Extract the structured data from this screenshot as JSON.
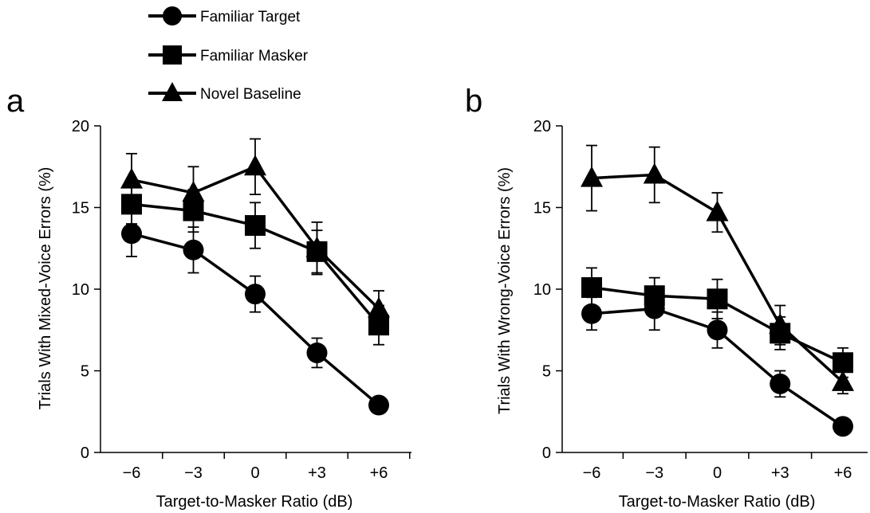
{
  "chart_data": [
    {
      "type": "line",
      "panel_label": "a",
      "xlabel": "Target-to-Masker Ratio (dB)",
      "ylabel": "Trials With Mixed-Voice Errors (%)",
      "categories": [
        "−6",
        "−3",
        "0",
        "+3",
        "+6"
      ],
      "ylim": [
        0,
        20
      ],
      "yticks": [
        "0",
        "5",
        "10",
        "15",
        "20"
      ],
      "grid": false,
      "legend": "top-left",
      "series": [
        {
          "name": "Familiar Target",
          "marker": "circle",
          "values": [
            13.4,
            12.4,
            9.7,
            6.1,
            2.9
          ],
          "errors": [
            1.4,
            1.4,
            1.1,
            0.9,
            0
          ]
        },
        {
          "name": "Familiar Masker",
          "marker": "square",
          "values": [
            15.2,
            14.8,
            13.9,
            12.3,
            7.8
          ],
          "errors": [
            1.2,
            1.3,
            1.4,
            1.3,
            1.2
          ]
        },
        {
          "name": "Novel Baseline",
          "marker": "triangle",
          "values": [
            16.7,
            15.9,
            17.5,
            12.5,
            8.8
          ],
          "errors": [
            1.6,
            1.6,
            1.7,
            1.6,
            1.1
          ]
        }
      ]
    },
    {
      "type": "line",
      "panel_label": "b",
      "xlabel": "Target-to-Masker Ratio (dB)",
      "ylabel": "Trials With Wrong-Voice Errors (%)",
      "categories": [
        "−6",
        "−3",
        "0",
        "+3",
        "+6"
      ],
      "ylim": [
        0,
        20
      ],
      "yticks": [
        "0",
        "5",
        "10",
        "15",
        "20"
      ],
      "grid": false,
      "series": [
        {
          "name": "Familiar Target",
          "marker": "circle",
          "values": [
            8.5,
            8.8,
            7.5,
            4.2,
            1.6
          ],
          "errors": [
            1.0,
            1.3,
            1.1,
            0.8,
            0
          ]
        },
        {
          "name": "Familiar Masker",
          "marker": "square",
          "values": [
            10.1,
            9.6,
            9.4,
            7.3,
            5.5
          ],
          "errors": [
            1.2,
            1.1,
            1.2,
            1.0,
            0.9
          ]
        },
        {
          "name": "Novel Baseline",
          "marker": "triangle",
          "values": [
            16.8,
            17.0,
            14.7,
            7.8,
            4.3
          ],
          "errors": [
            2.0,
            1.7,
            1.2,
            1.2,
            0.7
          ]
        }
      ]
    }
  ],
  "legend": {
    "items": [
      {
        "label": "Familiar Target",
        "marker": "circle"
      },
      {
        "label": "Familiar Masker",
        "marker": "square"
      },
      {
        "label": "Novel Baseline",
        "marker": "triangle"
      }
    ]
  },
  "colors": {
    "ink": "#000000",
    "background": "#ffffff"
  }
}
